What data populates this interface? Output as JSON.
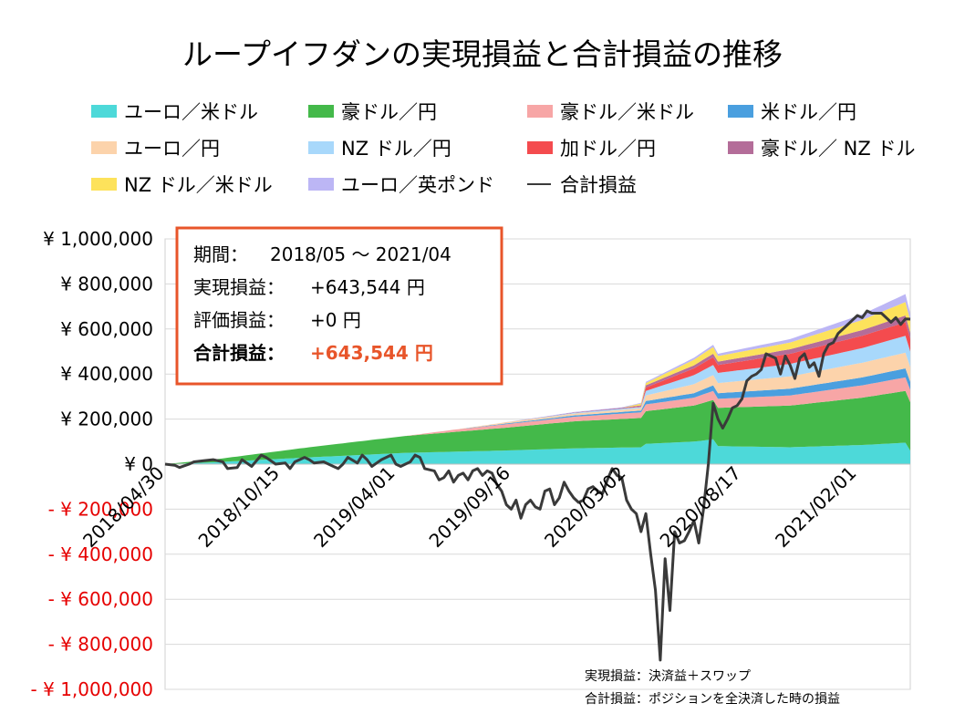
{
  "chart_data": {
    "type": "area",
    "title": "ループイフダンの実現損益と合計損益の推移",
    "colors": {
      "eurusd": "#4dd9d9",
      "audjpy": "#44b94a",
      "audusd": "#f7a6a6",
      "usdjpy": "#4a9fdf",
      "eurjpy": "#fcd3ab",
      "nzdjpy": "#a8d8fb",
      "cadjpy": "#f44b4e",
      "audnzd": "#b46d99",
      "nzdusd": "#fde25b",
      "eurgbp": "#bcb6f5",
      "total": "#3a3a3a",
      "negative": "#e60000",
      "box_border": "#e8552a",
      "box_highlight": "#e8552a"
    },
    "legend": [
      {
        "key": "eurusd",
        "label": "ユーロ／米ドル"
      },
      {
        "key": "audjpy",
        "label": "豪ドル／円"
      },
      {
        "key": "audusd",
        "label": "豪ドル／米ドル"
      },
      {
        "key": "usdjpy",
        "label": "米ドル／円"
      },
      {
        "key": "eurjpy",
        "label": "ユーロ／円"
      },
      {
        "key": "nzdjpy",
        "label": "NZ ドル／円"
      },
      {
        "key": "cadjpy",
        "label": "加ドル／円"
      },
      {
        "key": "audnzd",
        "label": "豪ドル／ NZ ドル"
      },
      {
        "key": "nzdusd",
        "label": "NZ ドル／米ドル"
      },
      {
        "key": "eurgbp",
        "label": "ユーロ／英ポンド"
      },
      {
        "key": "total",
        "label": "合計損益",
        "line": true
      }
    ],
    "yticks": [
      "¥ 1,000,000",
      "¥ 800,000",
      "¥ 600,000",
      "¥ 400,000",
      "¥ 200,000",
      "¥ 0",
      "- ¥ 200,000",
      "- ¥ 400,000",
      "- ¥ 600,000",
      "- ¥ 800,000",
      "- ¥ 1,000,000"
    ],
    "ylim": [
      -1000000,
      1000000
    ],
    "xticks": [
      "2018/04/30",
      "2018/10/15",
      "2019/04/01",
      "2019/09/16",
      "2020/03/02",
      "2020/08/17",
      "2021/02/01"
    ],
    "x_points": 155,
    "series": [
      {
        "key": "eurusd",
        "knots": [
          [
            0,
            0
          ],
          [
            10,
            8000
          ],
          [
            30,
            30000
          ],
          [
            50,
            50000
          ],
          [
            70,
            60000
          ],
          [
            85,
            70000
          ],
          [
            99,
            75000
          ],
          [
            100,
            90000
          ],
          [
            110,
            100000
          ],
          [
            114,
            110000
          ],
          [
            115,
            80000
          ],
          [
            130,
            75000
          ],
          [
            145,
            85000
          ],
          [
            154,
            95000
          ],
          [
            155,
            60000
          ]
        ]
      },
      {
        "key": "audjpy",
        "knots": [
          [
            0,
            0
          ],
          [
            10,
            12000
          ],
          [
            30,
            45000
          ],
          [
            50,
            75000
          ],
          [
            70,
            100000
          ],
          [
            85,
            120000
          ],
          [
            99,
            130000
          ],
          [
            100,
            145000
          ],
          [
            110,
            160000
          ],
          [
            114,
            175000
          ],
          [
            115,
            170000
          ],
          [
            130,
            185000
          ],
          [
            145,
            210000
          ],
          [
            154,
            230000
          ],
          [
            155,
            215000
          ]
        ]
      },
      {
        "key": "audusd",
        "knots": [
          [
            0,
            0
          ],
          [
            50,
            0
          ],
          [
            60,
            10000
          ],
          [
            70,
            15000
          ],
          [
            85,
            20000
          ],
          [
            99,
            25000
          ],
          [
            100,
            30000
          ],
          [
            110,
            35000
          ],
          [
            114,
            40000
          ],
          [
            115,
            40000
          ],
          [
            130,
            45000
          ],
          [
            145,
            55000
          ],
          [
            154,
            60000
          ],
          [
            155,
            55000
          ]
        ]
      },
      {
        "key": "usdjpy",
        "knots": [
          [
            0,
            0
          ],
          [
            60,
            0
          ],
          [
            70,
            3000
          ],
          [
            85,
            6000
          ],
          [
            99,
            8000
          ],
          [
            100,
            15000
          ],
          [
            110,
            20000
          ],
          [
            114,
            25000
          ],
          [
            115,
            25000
          ],
          [
            130,
            30000
          ],
          [
            145,
            35000
          ],
          [
            154,
            40000
          ],
          [
            155,
            35000
          ]
        ]
      },
      {
        "key": "eurjpy",
        "knots": [
          [
            0,
            0
          ],
          [
            60,
            0
          ],
          [
            70,
            5000
          ],
          [
            85,
            8000
          ],
          [
            99,
            10000
          ],
          [
            100,
            25000
          ],
          [
            110,
            40000
          ],
          [
            114,
            45000
          ],
          [
            115,
            45000
          ],
          [
            130,
            55000
          ],
          [
            145,
            65000
          ],
          [
            154,
            70000
          ],
          [
            155,
            65000
          ]
        ]
      },
      {
        "key": "nzdjpy",
        "knots": [
          [
            0,
            0
          ],
          [
            70,
            0
          ],
          [
            85,
            3000
          ],
          [
            99,
            6000
          ],
          [
            100,
            20000
          ],
          [
            110,
            40000
          ],
          [
            114,
            45000
          ],
          [
            115,
            45000
          ],
          [
            130,
            55000
          ],
          [
            145,
            65000
          ],
          [
            154,
            75000
          ],
          [
            155,
            70000
          ]
        ]
      },
      {
        "key": "cadjpy",
        "knots": [
          [
            0,
            0
          ],
          [
            95,
            0
          ],
          [
            99,
            3000
          ],
          [
            100,
            15000
          ],
          [
            110,
            30000
          ],
          [
            114,
            35000
          ],
          [
            115,
            35000
          ],
          [
            130,
            45000
          ],
          [
            145,
            55000
          ],
          [
            154,
            60000
          ],
          [
            155,
            55000
          ]
        ]
      },
      {
        "key": "audnzd",
        "knots": [
          [
            0,
            0
          ],
          [
            70,
            0
          ],
          [
            85,
            2000
          ],
          [
            99,
            4000
          ],
          [
            100,
            10000
          ],
          [
            114,
            15000
          ],
          [
            115,
            15000
          ],
          [
            130,
            20000
          ],
          [
            145,
            25000
          ],
          [
            154,
            30000
          ],
          [
            155,
            28000
          ]
        ]
      },
      {
        "key": "nzdusd",
        "knots": [
          [
            0,
            0
          ],
          [
            95,
            0
          ],
          [
            100,
            10000
          ],
          [
            110,
            25000
          ],
          [
            114,
            30000
          ],
          [
            115,
            25000
          ],
          [
            130,
            30000
          ],
          [
            145,
            45000
          ],
          [
            154,
            60000
          ],
          [
            155,
            55000
          ]
        ]
      },
      {
        "key": "eurgbp",
        "knots": [
          [
            0,
            0
          ],
          [
            70,
            0
          ],
          [
            85,
            2000
          ],
          [
            99,
            3000
          ],
          [
            100,
            5000
          ],
          [
            114,
            10000
          ],
          [
            115,
            10000
          ],
          [
            130,
            15000
          ],
          [
            145,
            25000
          ],
          [
            154,
            35000
          ],
          [
            155,
            30000
          ]
        ]
      }
    ],
    "total_line": [
      [
        0,
        0
      ],
      [
        2,
        -5000
      ],
      [
        3,
        -15000
      ],
      [
        5,
        0
      ],
      [
        6,
        10000
      ],
      [
        8,
        15000
      ],
      [
        10,
        20000
      ],
      [
        12,
        10000
      ],
      [
        13,
        -20000
      ],
      [
        15,
        -15000
      ],
      [
        16,
        20000
      ],
      [
        18,
        -10000
      ],
      [
        20,
        40000
      ],
      [
        21,
        30000
      ],
      [
        23,
        0
      ],
      [
        25,
        5000
      ],
      [
        26,
        -20000
      ],
      [
        27,
        10000
      ],
      [
        29,
        30000
      ],
      [
        30,
        20000
      ],
      [
        31,
        5000
      ],
      [
        33,
        10000
      ],
      [
        35,
        -10000
      ],
      [
        36,
        -20000
      ],
      [
        37,
        0
      ],
      [
        38,
        30000
      ],
      [
        40,
        5000
      ],
      [
        41,
        40000
      ],
      [
        42,
        20000
      ],
      [
        43,
        -10000
      ],
      [
        45,
        20000
      ],
      [
        47,
        40000
      ],
      [
        48,
        0
      ],
      [
        49,
        -10000
      ],
      [
        50,
        0
      ],
      [
        51,
        10000
      ],
      [
        52,
        40000
      ],
      [
        53,
        30000
      ],
      [
        54,
        -20000
      ],
      [
        56,
        -30000
      ],
      [
        57,
        -70000
      ],
      [
        58,
        -60000
      ],
      [
        59,
        -30000
      ],
      [
        60,
        -80000
      ],
      [
        61,
        -50000
      ],
      [
        62,
        -40000
      ],
      [
        63,
        -70000
      ],
      [
        64,
        -30000
      ],
      [
        65,
        -20000
      ],
      [
        66,
        -50000
      ],
      [
        67,
        -30000
      ],
      [
        68,
        -40000
      ],
      [
        69,
        -90000
      ],
      [
        70,
        -120000
      ],
      [
        71,
        -180000
      ],
      [
        72,
        -200000
      ],
      [
        73,
        -160000
      ],
      [
        74,
        -240000
      ],
      [
        75,
        -180000
      ],
      [
        76,
        -160000
      ],
      [
        77,
        -190000
      ],
      [
        78,
        -200000
      ],
      [
        79,
        -120000
      ],
      [
        80,
        -110000
      ],
      [
        81,
        -180000
      ],
      [
        82,
        -150000
      ],
      [
        83,
        -80000
      ],
      [
        84,
        -120000
      ],
      [
        85,
        -150000
      ],
      [
        86,
        -170000
      ],
      [
        87,
        -160000
      ],
      [
        88,
        -110000
      ],
      [
        89,
        -100000
      ],
      [
        90,
        -120000
      ],
      [
        91,
        -130000
      ],
      [
        92,
        -70000
      ],
      [
        93,
        -20000
      ],
      [
        94,
        -50000
      ],
      [
        95,
        -60000
      ],
      [
        96,
        -160000
      ],
      [
        97,
        -200000
      ],
      [
        98,
        -220000
      ],
      [
        99,
        -300000
      ],
      [
        100,
        -220000
      ],
      [
        101,
        -400000
      ],
      [
        102,
        -560000
      ],
      [
        103,
        -870000
      ],
      [
        104,
        -420000
      ],
      [
        105,
        -650000
      ],
      [
        106,
        -300000
      ],
      [
        107,
        -350000
      ],
      [
        108,
        -340000
      ],
      [
        109,
        -300000
      ],
      [
        110,
        -250000
      ],
      [
        111,
        -350000
      ],
      [
        112,
        -200000
      ],
      [
        113,
        0
      ],
      [
        114,
        270000
      ],
      [
        115,
        200000
      ],
      [
        116,
        160000
      ],
      [
        117,
        200000
      ],
      [
        118,
        250000
      ],
      [
        119,
        260000
      ],
      [
        120,
        290000
      ],
      [
        121,
        370000
      ],
      [
        122,
        390000
      ],
      [
        123,
        400000
      ],
      [
        124,
        420000
      ],
      [
        125,
        490000
      ],
      [
        126,
        480000
      ],
      [
        127,
        470000
      ],
      [
        128,
        400000
      ],
      [
        129,
        480000
      ],
      [
        130,
        440000
      ],
      [
        131,
        380000
      ],
      [
        132,
        470000
      ],
      [
        133,
        490000
      ],
      [
        134,
        430000
      ],
      [
        135,
        450000
      ],
      [
        136,
        390000
      ],
      [
        137,
        490000
      ],
      [
        138,
        530000
      ],
      [
        139,
        540000
      ],
      [
        140,
        580000
      ],
      [
        141,
        600000
      ],
      [
        142,
        620000
      ],
      [
        143,
        640000
      ],
      [
        144,
        660000
      ],
      [
        145,
        650000
      ],
      [
        146,
        680000
      ],
      [
        147,
        670000
      ],
      [
        148,
        670000
      ],
      [
        149,
        670000
      ],
      [
        150,
        650000
      ],
      [
        151,
        630000
      ],
      [
        152,
        650000
      ],
      [
        153,
        620000
      ],
      [
        154,
        645000
      ],
      [
        155,
        643544
      ]
    ]
  },
  "info_box": {
    "period_label": "期間：",
    "period_value": "2018/05 ～ 2021/04",
    "realized_label": "実現損益：",
    "realized_value": "+643,544 円",
    "unrealized_label": "評価損益：",
    "unrealized_value": "+0 円",
    "total_label": "合計損益：",
    "total_value": "+643,544 円"
  },
  "notes": {
    "line1": "実現損益：決済益＋スワップ",
    "line2": "合計損益：ポジションを全決済した時の損益"
  }
}
